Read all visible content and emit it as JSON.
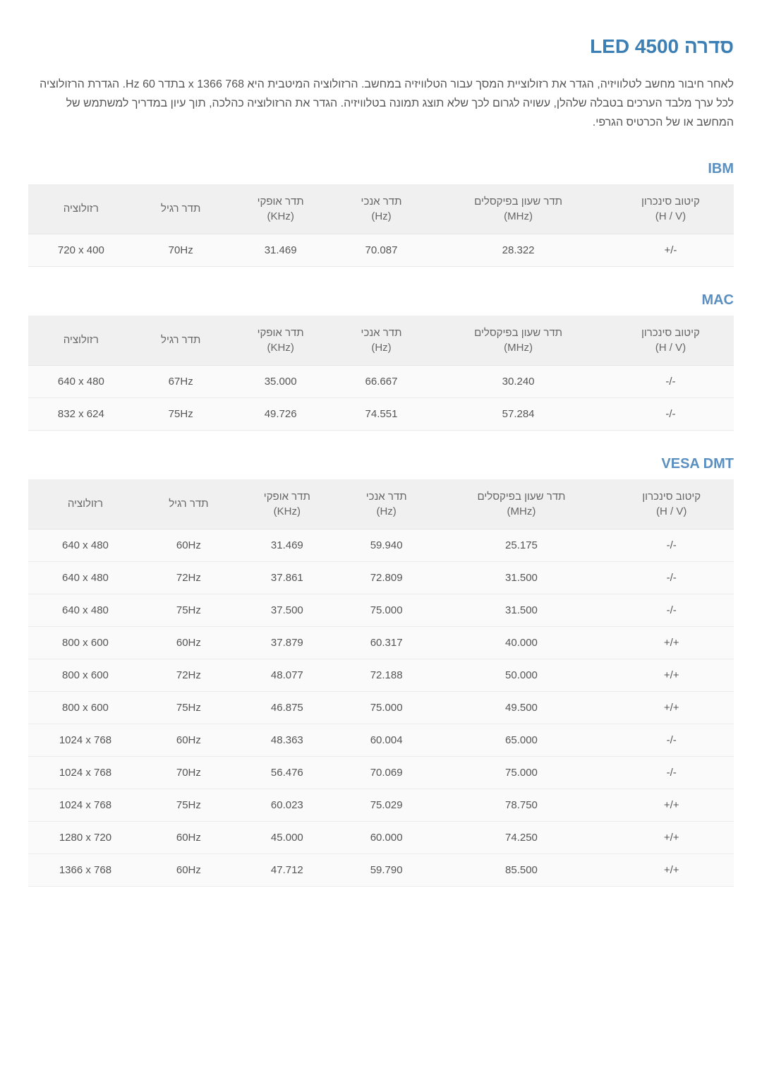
{
  "title": "סדרה LED 4500",
  "intro": "לאחר חיבור מחשב לטלוויזיה, הגדר את רזולוציית המסך עבור הטלוויזיה במחשב. הרזולוציה המיטבית היא 768 x 1366 בתדר 60 Hz. הגדרת הרזולוציה לכל ערך מלבד הערכים בטבלה שלהלן, עשויה לגרום לכך שלא תוצג תמונה בטלוויזיה. הגדר את הרזולוציה כהלכה, תוך עיון במדריך למשתמש של המחשב או של הכרטיס הגרפי.",
  "columns": {
    "sync_polarity": "קיטוב סינכרון\n(H / V)",
    "pixel_clock": "תדר שעון בפיקסלים\n(MHz)",
    "vfreq": "תדר אנכי\n(Hz)",
    "hfreq": "תדר אופקי\n(KHz)",
    "std_freq": "תדר רגיל",
    "resolution": "רזולוציה"
  },
  "sections": [
    {
      "title": "IBM",
      "rows": [
        {
          "sync": "+/-",
          "pixel": "28.322",
          "v": "70.087",
          "h": "31.469",
          "std": "70Hz",
          "res": "720 x 400"
        }
      ]
    },
    {
      "title": "MAC",
      "rows": [
        {
          "sync": "-/-",
          "pixel": "30.240",
          "v": "66.667",
          "h": "35.000",
          "std": "67Hz",
          "res": "640 x 480"
        },
        {
          "sync": "-/-",
          "pixel": "57.284",
          "v": "74.551",
          "h": "49.726",
          "std": "75Hz",
          "res": "832 x 624"
        }
      ]
    },
    {
      "title": "VESA DMT",
      "rows": [
        {
          "sync": "-/-",
          "pixel": "25.175",
          "v": "59.940",
          "h": "31.469",
          "std": "60Hz",
          "res": "640 x 480"
        },
        {
          "sync": "-/-",
          "pixel": "31.500",
          "v": "72.809",
          "h": "37.861",
          "std": "72Hz",
          "res": "640 x 480"
        },
        {
          "sync": "-/-",
          "pixel": "31.500",
          "v": "75.000",
          "h": "37.500",
          "std": "75Hz",
          "res": "640 x 480"
        },
        {
          "sync": "+/+",
          "pixel": "40.000",
          "v": "60.317",
          "h": "37.879",
          "std": "60Hz",
          "res": "800 x 600"
        },
        {
          "sync": "+/+",
          "pixel": "50.000",
          "v": "72.188",
          "h": "48.077",
          "std": "72Hz",
          "res": "800 x 600"
        },
        {
          "sync": "+/+",
          "pixel": "49.500",
          "v": "75.000",
          "h": "46.875",
          "std": "75Hz",
          "res": "800 x 600"
        },
        {
          "sync": "-/-",
          "pixel": "65.000",
          "v": "60.004",
          "h": "48.363",
          "std": "60Hz",
          "res": "1024 x 768"
        },
        {
          "sync": "-/-",
          "pixel": "75.000",
          "v": "70.069",
          "h": "56.476",
          "std": "70Hz",
          "res": "1024 x 768"
        },
        {
          "sync": "+/+",
          "pixel": "78.750",
          "v": "75.029",
          "h": "60.023",
          "std": "75Hz",
          "res": "1024 x 768"
        },
        {
          "sync": "+/+",
          "pixel": "74.250",
          "v": "60.000",
          "h": "45.000",
          "std": "60Hz",
          "res": "1280 x 720"
        },
        {
          "sync": "+/+",
          "pixel": "85.500",
          "v": "59.790",
          "h": "47.712",
          "std": "60Hz",
          "res": "1366 x 768"
        }
      ]
    }
  ],
  "styles": {
    "title_color": "#3b7fb5",
    "section_color": "#5a8fc0",
    "header_bg": "#f0f0f0",
    "row_bg": "#fafafa",
    "text_color": "#555555",
    "border_color": "#ebebeb",
    "title_fontsize": 28,
    "section_fontsize": 20,
    "body_fontsize": 15
  }
}
